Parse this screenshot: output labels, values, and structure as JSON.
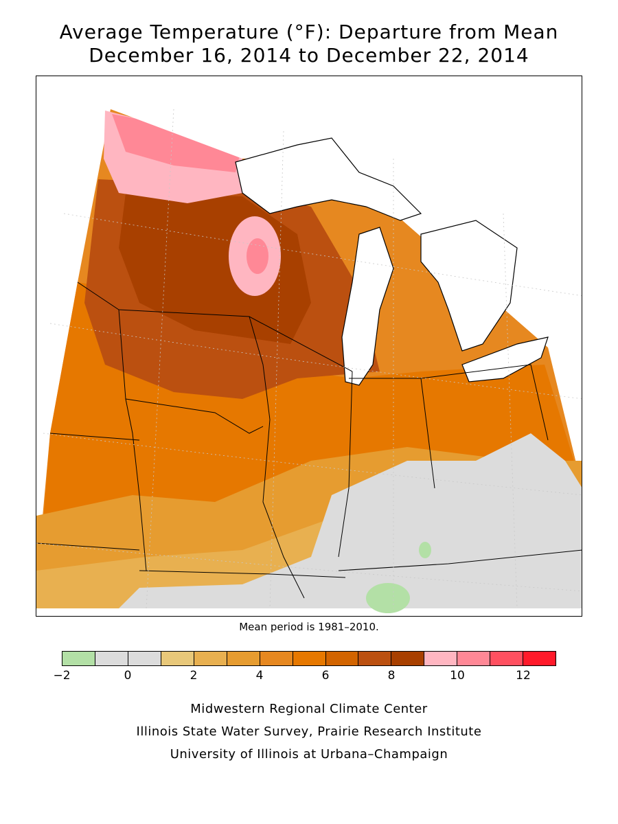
{
  "title": {
    "line1": "Average Temperature (°F): Departure from Mean",
    "line2": "December 16, 2014 to December 22, 2014"
  },
  "mean_note": "Mean period is 1981–2010.",
  "legend": {
    "colors": [
      "#b3e0a6",
      "#dcdcdc",
      "#dcdcdc",
      "#e8c87a",
      "#e8b050",
      "#e69c30",
      "#e68820",
      "#e67800",
      "#d26400",
      "#bb5010",
      "#a84000",
      "#ffb6c1",
      "#ff8896",
      "#ff5060",
      "#ff1a2a"
    ],
    "tick_labels": [
      "−2",
      "0",
      "2",
      "4",
      "6",
      "8",
      "10",
      "12"
    ]
  },
  "credits": {
    "line1": "Midwestern Regional Climate Center",
    "line2": "Illinois State Water Survey, Prairie Research Institute",
    "line3": "University of Illinois at Urbana–Champaign"
  },
  "map": {
    "region": "Midwest United States",
    "variable": "temperature departure",
    "units": "°F",
    "dominant_colors": {
      "north_minnesota": "#ff8896",
      "minnesota_iowa_wisconsin": "#a84000",
      "southern_plains": "#e67800",
      "ohio_valley": "#dcdcdc",
      "great_lakes": "#ffffff"
    }
  }
}
